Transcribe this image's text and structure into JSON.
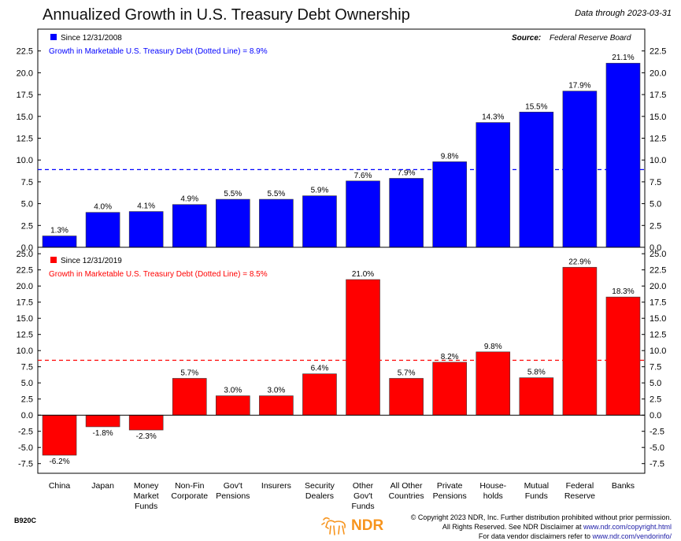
{
  "header": {
    "title": "Annualized Growth in U.S. Treasury Debt Ownership",
    "data_through": "Data through 2023-03-31"
  },
  "footer": {
    "code": "B920C",
    "logo_text": "NDR",
    "copyright_line1": "© Copyright 2023 NDR, Inc. Further distribution prohibited without prior permission.",
    "copyright_line2_pre": "All Rights Reserved. See NDR Disclaimer at ",
    "copyright_line2_link": "www.ndr.com/copyright.html",
    "copyright_line3_pre": "For data vendor disclaimers refer to ",
    "copyright_line3_link": "www.ndr.com/vendorinfo/"
  },
  "colors": {
    "top": "#0000ff",
    "bottom": "#ff0000"
  },
  "chart_data": [
    {
      "type": "bar",
      "panel": "top",
      "legend": "Since 12/31/2008",
      "source_label": "Source:",
      "source_value": "Federal Reserve Board",
      "reference_line": {
        "label": "Growth in Marketable U.S. Treasury Debt (Dotted Line) = 8.9%",
        "value": 8.9
      },
      "categories": [
        "China",
        "Japan",
        "Money Market Funds",
        "Non-Fin Corporate",
        "Gov't Pensions",
        "Insurers",
        "Security Dealers",
        "Other Gov't Funds",
        "All Other Countries",
        "Private Pensions",
        "House-holds",
        "Mutual Funds",
        "Federal Reserve",
        "Banks"
      ],
      "values": [
        1.3,
        4.0,
        4.1,
        4.9,
        5.5,
        5.5,
        5.9,
        7.6,
        7.9,
        9.8,
        14.3,
        15.5,
        17.9,
        21.1
      ],
      "labels": [
        "1.3%",
        "4.0%",
        "4.1%",
        "4.9%",
        "5.5%",
        "5.5%",
        "5.9%",
        "7.6%",
        "7.9%",
        "9.8%",
        "14.3%",
        "15.5%",
        "17.9%",
        "21.1%"
      ],
      "ylim": [
        0,
        25
      ],
      "ticks": [
        0.0,
        2.5,
        5.0,
        7.5,
        10.0,
        12.5,
        15.0,
        17.5,
        20.0,
        22.5
      ],
      "tick_labels": [
        "0.0",
        "2.5",
        "5.0",
        "7.5",
        "10.0",
        "12.5",
        "15.0",
        "17.5",
        "20.0",
        "22.5"
      ]
    },
    {
      "type": "bar",
      "panel": "bottom",
      "legend": "Since 12/31/2019",
      "reference_line": {
        "label": "Growth in Marketable U.S. Treasury Debt (Dotted Line) = 8.5%",
        "value": 8.5
      },
      "values": [
        -6.2,
        -1.8,
        -2.3,
        5.7,
        3.0,
        3.0,
        6.4,
        21.0,
        5.7,
        8.2,
        9.8,
        5.8,
        22.9,
        18.3
      ],
      "labels": [
        "-6.2%",
        "-1.8%",
        "-2.3%",
        "5.7%",
        "3.0%",
        "3.0%",
        "6.4%",
        "21.0%",
        "5.7%",
        "8.2%",
        "9.8%",
        "5.8%",
        "22.9%",
        "18.3%"
      ],
      "ylim": [
        -9,
        26
      ],
      "ticks": [
        -7.5,
        -5.0,
        -2.5,
        0.0,
        2.5,
        5.0,
        7.5,
        10.0,
        12.5,
        15.0,
        17.5,
        20.0,
        22.5,
        25.0
      ],
      "tick_labels": [
        "-7.5",
        "-5.0",
        "-2.5",
        "0.0",
        "2.5",
        "5.0",
        "7.5",
        "10.0",
        "12.5",
        "15.0",
        "17.5",
        "20.0",
        "22.5",
        "25.0"
      ]
    }
  ],
  "category_lines": [
    [
      "China"
    ],
    [
      "Japan"
    ],
    [
      "Money",
      "Market",
      "Funds"
    ],
    [
      "Non-Fin",
      "Corporate"
    ],
    [
      "Gov't",
      "Pensions"
    ],
    [
      "Insurers"
    ],
    [
      "Security",
      "Dealers"
    ],
    [
      "Other",
      "Gov't",
      "Funds"
    ],
    [
      "All Other",
      "Countries"
    ],
    [
      "Private",
      "Pensions"
    ],
    [
      "House-",
      "holds"
    ],
    [
      "Mutual",
      "Funds"
    ],
    [
      "Federal",
      "Reserve"
    ],
    [
      "Banks"
    ]
  ]
}
